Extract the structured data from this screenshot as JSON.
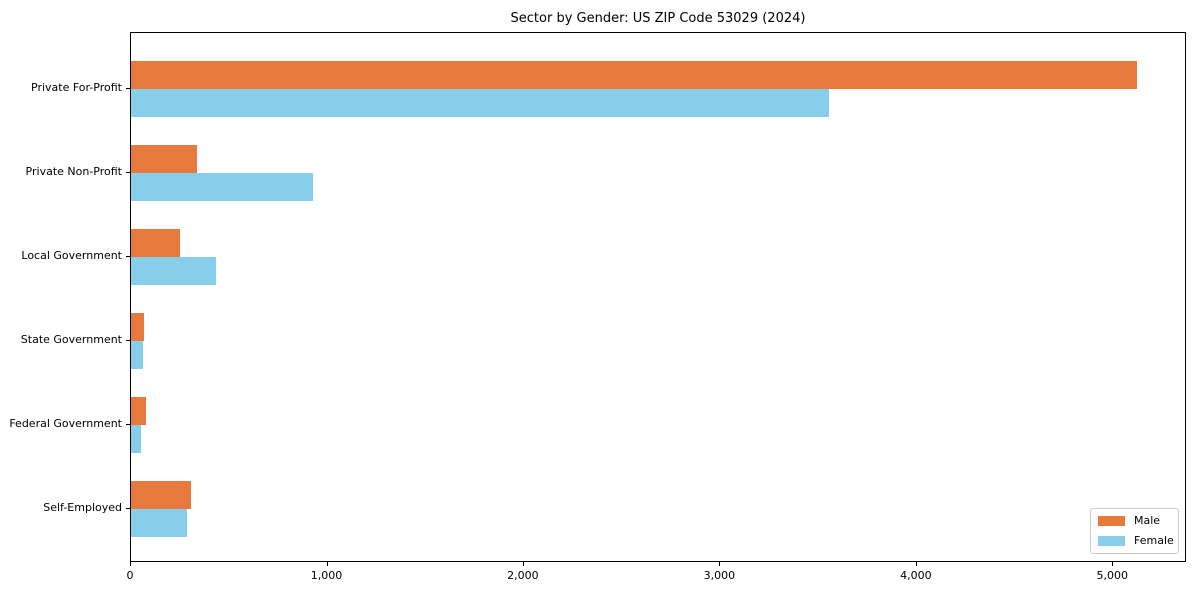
{
  "chart_data": {
    "type": "bar",
    "orientation": "horizontal",
    "title": "Sector by Gender: US ZIP Code 53029 (2024)",
    "xlabel": "",
    "ylabel": "",
    "categories": [
      "Private For-Profit",
      "Private Non-Profit",
      "Local Government",
      "State Government",
      "Federal Government",
      "Self-Employed"
    ],
    "series": [
      {
        "name": "Male",
        "color": "#e8793d",
        "values": [
          5120,
          335,
          250,
          65,
          75,
          305
        ]
      },
      {
        "name": "Female",
        "color": "#87ceeb",
        "values": [
          3550,
          925,
          430,
          60,
          50,
          285
        ]
      }
    ],
    "xlim": [
      0,
      5375
    ],
    "xticks": [
      0,
      1000,
      2000,
      3000,
      4000,
      5000
    ],
    "xtick_labels": [
      "0",
      "1,000",
      "2,000",
      "3,000",
      "4,000",
      "5,000"
    ],
    "legend_position": "lower right",
    "grid": false,
    "frame": true,
    "text_color": "#000000",
    "background_color": "#ffffff"
  }
}
